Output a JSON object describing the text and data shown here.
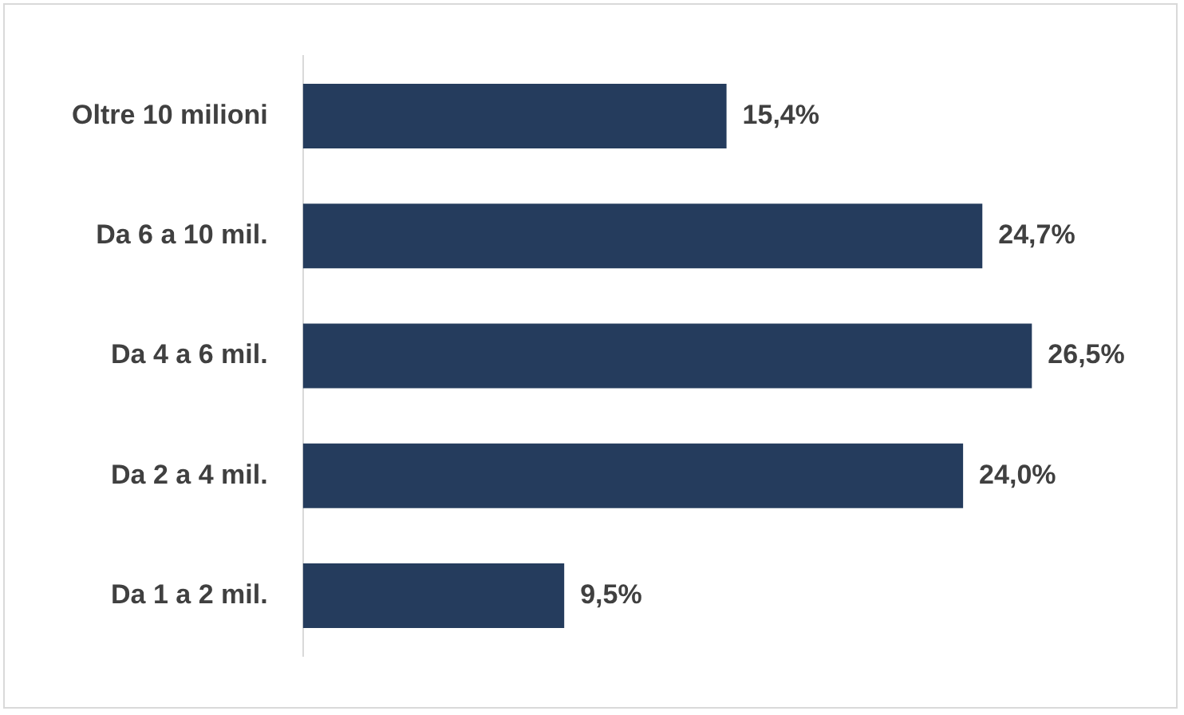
{
  "chart_data": {
    "type": "bar",
    "orientation": "horizontal",
    "categories": [
      "Oltre 10 milioni",
      "Da 6 a 10 mil.",
      "Da 4 a 6 mil.",
      "Da 2 a 4 mil.",
      "Da 1 a 2 mil."
    ],
    "values": [
      15.4,
      24.7,
      26.5,
      24.0,
      9.5
    ],
    "value_labels": [
      "15,4%",
      "24,7%",
      "26,5%",
      "24,0%",
      "9,5%"
    ],
    "color": "#253c5d",
    "legend": false
  }
}
